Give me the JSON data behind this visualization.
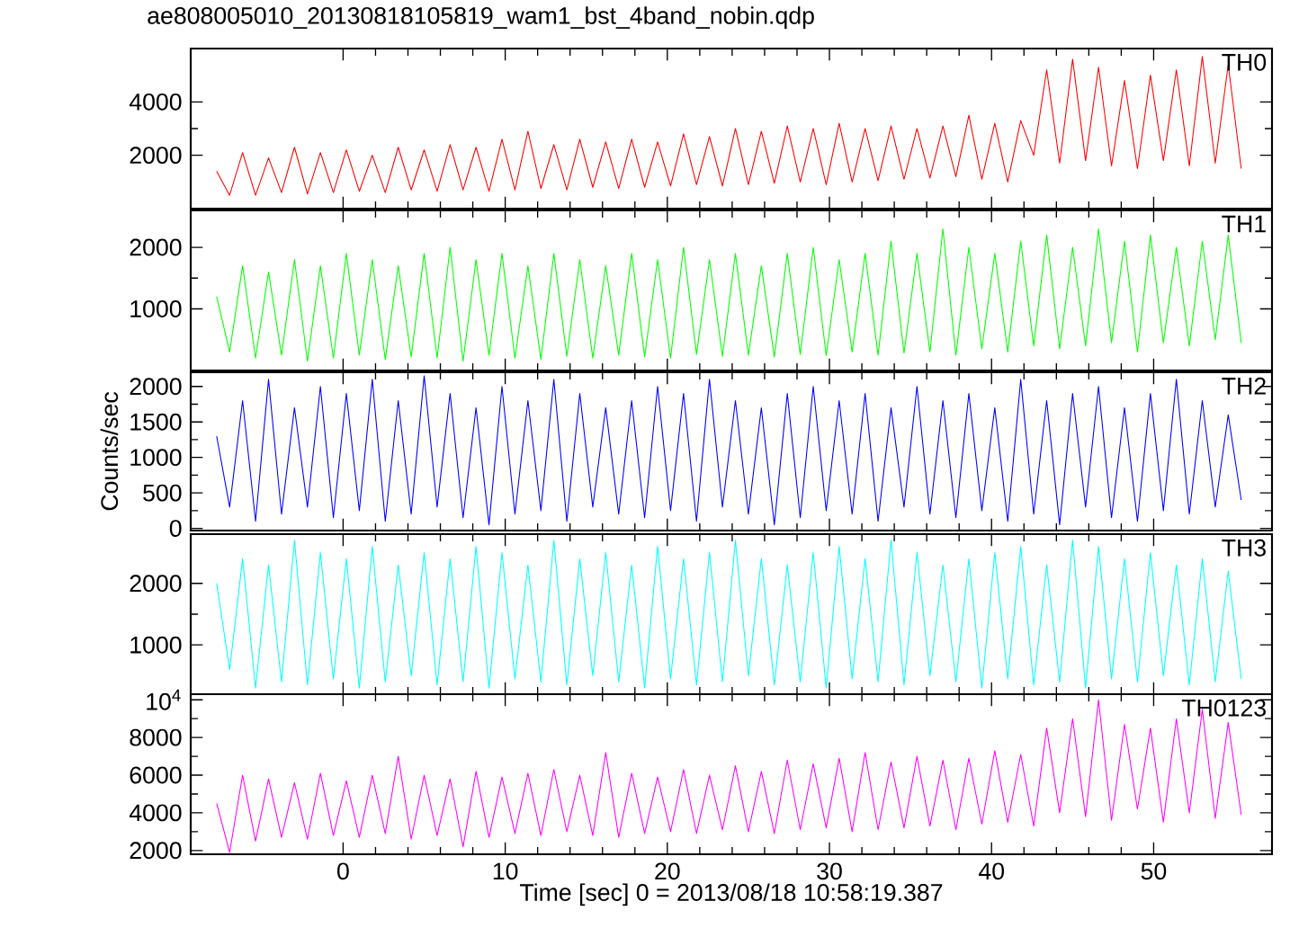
{
  "chart_data": [
    {
      "type": "line",
      "title": "ae808005010_20130818105819_wam1_bst_4band_nobin.qdp",
      "tick_labels": "y",
      "x": [
        -7.8,
        -7,
        -6.2,
        -5.4,
        -4.6,
        -3.8,
        -3,
        -2.2,
        -1.4,
        -0.6,
        0.2,
        1,
        1.8,
        2.6,
        3.4,
        4.2,
        5,
        5.8,
        6.6,
        7.4,
        8.2,
        9,
        9.8,
        10.6,
        11.4,
        12.2,
        13,
        13.8,
        14.6,
        15.4,
        16.2,
        17,
        17.8,
        18.6,
        19.4,
        20.2,
        21,
        21.8,
        22.6,
        23.4,
        24.2,
        25,
        25.8,
        26.6,
        27.4,
        28.2,
        29,
        29.8,
        30.6,
        31.4,
        32.2,
        33,
        33.8,
        34.6,
        35.4,
        36.2,
        37,
        37.8,
        38.6,
        39.4,
        40.2,
        41,
        41.8,
        42.6,
        43.4,
        44.2,
        45,
        45.8,
        46.6,
        47.4,
        48.2,
        49,
        49.8,
        50.6,
        51.4,
        52.2,
        53,
        53.8,
        54.6,
        55.4
      ],
      "xlim": [
        -9.4,
        57.3
      ],
      "xticks": [
        0,
        10,
        20,
        30,
        40,
        50
      ],
      "ylim": [
        0,
        6000
      ],
      "yticks": [
        2000,
        4000
      ],
      "series": [
        {
          "name": "TH0",
          "color": "#ff0000",
          "values": [
            1400,
            500,
            2100,
            500,
            1900,
            600,
            2300,
            550,
            2100,
            600,
            2200,
            650,
            2000,
            600,
            2300,
            700,
            2200,
            650,
            2400,
            700,
            2300,
            650,
            2600,
            700,
            2900,
            750,
            2400,
            700,
            2600,
            800,
            2500,
            750,
            2600,
            800,
            2500,
            850,
            2800,
            900,
            2700,
            850,
            3000,
            900,
            2900,
            950,
            3100,
            1000,
            3000,
            900,
            3200,
            1000,
            3000,
            1050,
            3100,
            1100,
            3000,
            1150,
            3100,
            1200,
            3500,
            1100,
            3200,
            1000,
            3300,
            2000,
            5200,
            1700,
            5600,
            1800,
            5300,
            1600,
            4800,
            1500,
            5000,
            1800,
            5200,
            1600,
            5700,
            1700,
            5400,
            1500
          ]
        }
      ]
    },
    {
      "type": "line",
      "tick_labels": "y",
      "x": [
        -7.8,
        -7,
        -6.2,
        -5.4,
        -4.6,
        -3.8,
        -3,
        -2.2,
        -1.4,
        -0.6,
        0.2,
        1,
        1.8,
        2.6,
        3.4,
        4.2,
        5,
        5.8,
        6.6,
        7.4,
        8.2,
        9,
        9.8,
        10.6,
        11.4,
        12.2,
        13,
        13.8,
        14.6,
        15.4,
        16.2,
        17,
        17.8,
        18.6,
        19.4,
        20.2,
        21,
        21.8,
        22.6,
        23.4,
        24.2,
        25,
        25.8,
        26.6,
        27.4,
        28.2,
        29,
        29.8,
        30.6,
        31.4,
        32.2,
        33,
        33.8,
        34.6,
        35.4,
        36.2,
        37,
        37.8,
        38.6,
        39.4,
        40.2,
        41,
        41.8,
        42.6,
        43.4,
        44.2,
        45,
        45.8,
        46.6,
        47.4,
        48.2,
        49,
        49.8,
        50.6,
        51.4,
        52.2,
        53,
        53.8,
        54.6,
        55.4
      ],
      "xlim": [
        -9.4,
        57.3
      ],
      "xticks": [
        0,
        10,
        20,
        30,
        40,
        50
      ],
      "ylim": [
        0,
        2600
      ],
      "yticks": [
        1000,
        2000
      ],
      "series": [
        {
          "name": "TH1",
          "color": "#00ff00",
          "values": [
            1200,
            300,
            1700,
            200,
            1600,
            250,
            1800,
            150,
            1700,
            200,
            1900,
            250,
            1800,
            180,
            1700,
            220,
            1900,
            200,
            2000,
            150,
            1800,
            250,
            1900,
            200,
            1700,
            180,
            1900,
            230,
            1800,
            200,
            1700,
            250,
            1900,
            220,
            1800,
            200,
            2000,
            260,
            1800,
            230,
            1900,
            250,
            1700,
            220,
            1900,
            260,
            2000,
            240,
            1800,
            300,
            1900,
            250,
            2100,
            280,
            1900,
            300,
            2300,
            250,
            2000,
            350,
            1900,
            300,
            2100,
            400,
            2200,
            350,
            2000,
            400,
            2300,
            450,
            2100,
            300,
            2200,
            450,
            2000,
            400,
            2100,
            500,
            2200,
            450
          ]
        }
      ]
    },
    {
      "type": "line",
      "tick_labels": "y",
      "ylabel": "Counts/sec",
      "x": [
        -7.8,
        -7,
        -6.2,
        -5.4,
        -4.6,
        -3.8,
        -3,
        -2.2,
        -1.4,
        -0.6,
        0.2,
        1,
        1.8,
        2.6,
        3.4,
        4.2,
        5,
        5.8,
        6.6,
        7.4,
        8.2,
        9,
        9.8,
        10.6,
        11.4,
        12.2,
        13,
        13.8,
        14.6,
        15.4,
        16.2,
        17,
        17.8,
        18.6,
        19.4,
        20.2,
        21,
        21.8,
        22.6,
        23.4,
        24.2,
        25,
        25.8,
        26.6,
        27.4,
        28.2,
        29,
        29.8,
        30.6,
        31.4,
        32.2,
        33,
        33.8,
        34.6,
        35.4,
        36.2,
        37,
        37.8,
        38.6,
        39.4,
        40.2,
        41,
        41.8,
        42.6,
        43.4,
        44.2,
        45,
        45.8,
        46.6,
        47.4,
        48.2,
        49,
        49.8,
        50.6,
        51.4,
        52.2,
        53,
        53.8,
        54.6,
        55.4
      ],
      "xlim": [
        -9.4,
        57.3
      ],
      "xticks": [
        0,
        10,
        20,
        30,
        40,
        50
      ],
      "ylim": [
        -30,
        2200
      ],
      "yticks": [
        0,
        500,
        1000,
        1500,
        2000
      ],
      "series": [
        {
          "name": "TH2",
          "color": "#0000ff",
          "values": [
            1300,
            300,
            1800,
            100,
            2100,
            200,
            1700,
            300,
            2000,
            150,
            1900,
            250,
            2100,
            100,
            1800,
            200,
            2150,
            300,
            1900,
            150,
            1700,
            50,
            2000,
            200,
            1800,
            250,
            2100,
            100,
            1900,
            300,
            1700,
            200,
            1800,
            150,
            2000,
            250,
            1900,
            100,
            2100,
            300,
            1800,
            200,
            1700,
            50,
            1900,
            150,
            2000,
            250,
            1800,
            200,
            1900,
            100,
            1700,
            300,
            2000,
            200,
            1800,
            150,
            1900,
            250,
            1700,
            100,
            2100,
            200,
            1800,
            50,
            1900,
            300,
            2000,
            150,
            1700,
            100,
            1900,
            250,
            2100,
            200,
            1800,
            300,
            1600,
            400
          ]
        }
      ]
    },
    {
      "type": "line",
      "tick_labels": "y",
      "x": [
        -7.8,
        -7,
        -6.2,
        -5.4,
        -4.6,
        -3.8,
        -3,
        -2.2,
        -1.4,
        -0.6,
        0.2,
        1,
        1.8,
        2.6,
        3.4,
        4.2,
        5,
        5.8,
        6.6,
        7.4,
        8.2,
        9,
        9.8,
        10.6,
        11.4,
        12.2,
        13,
        13.8,
        14.6,
        15.4,
        16.2,
        17,
        17.8,
        18.6,
        19.4,
        20.2,
        21,
        21.8,
        22.6,
        23.4,
        24.2,
        25,
        25.8,
        26.6,
        27.4,
        28.2,
        29,
        29.8,
        30.6,
        31.4,
        32.2,
        33,
        33.8,
        34.6,
        35.4,
        36.2,
        37,
        37.8,
        38.6,
        39.4,
        40.2,
        41,
        41.8,
        42.6,
        43.4,
        44.2,
        45,
        45.8,
        46.6,
        47.4,
        48.2,
        49,
        49.8,
        50.6,
        51.4,
        52.2,
        53,
        53.8,
        54.6,
        55.4
      ],
      "xlim": [
        -9.4,
        57.3
      ],
      "xticks": [
        0,
        10,
        20,
        30,
        40,
        50
      ],
      "ylim": [
        200,
        2800
      ],
      "yticks": [
        1000,
        2000
      ],
      "series": [
        {
          "name": "TH3",
          "color": "#00ffff",
          "values": [
            2000,
            600,
            2400,
            300,
            2300,
            400,
            2700,
            350,
            2500,
            450,
            2400,
            300,
            2600,
            400,
            2300,
            500,
            2500,
            350,
            2400,
            400,
            2600,
            300,
            2500,
            450,
            2300,
            400,
            2700,
            350,
            2400,
            500,
            2500,
            400,
            2300,
            300,
            2600,
            450,
            2400,
            350,
            2500,
            400,
            2700,
            500,
            2400,
            350,
            2300,
            400,
            2500,
            300,
            2600,
            450,
            2400,
            400,
            2700,
            350,
            2500,
            500,
            2300,
            400,
            2400,
            300,
            2500,
            450,
            2600,
            350,
            2300,
            400,
            2700,
            300,
            2600,
            450,
            2400,
            400,
            2500,
            500,
            2300,
            350,
            2400,
            400,
            2200,
            450
          ]
        }
      ]
    },
    {
      "type": "line",
      "xlabel": "Time [sec] 0 = 2013/08/18 10:58:19.387",
      "x": [
        -7.8,
        -7,
        -6.2,
        -5.4,
        -4.6,
        -3.8,
        -3,
        -2.2,
        -1.4,
        -0.6,
        0.2,
        1,
        1.8,
        2.6,
        3.4,
        4.2,
        5,
        5.8,
        6.6,
        7.4,
        8.2,
        9,
        9.8,
        10.6,
        11.4,
        12.2,
        13,
        13.8,
        14.6,
        15.4,
        16.2,
        17,
        17.8,
        18.6,
        19.4,
        20.2,
        21,
        21.8,
        22.6,
        23.4,
        24.2,
        25,
        25.8,
        26.6,
        27.4,
        28.2,
        29,
        29.8,
        30.6,
        31.4,
        32.2,
        33,
        33.8,
        34.6,
        35.4,
        36.2,
        37,
        37.8,
        38.6,
        39.4,
        40.2,
        41,
        41.8,
        42.6,
        43.4,
        44.2,
        45,
        45.8,
        46.6,
        47.4,
        48.2,
        49,
        49.8,
        50.6,
        51.4,
        52.2,
        53,
        53.8,
        54.6,
        55.4
      ],
      "xlim": [
        -9.4,
        57.3
      ],
      "xticks": [
        0,
        10,
        20,
        30,
        40,
        50
      ],
      "ylim": [
        1800,
        10300
      ],
      "yticks": [
        2000,
        4000,
        6000,
        8000,
        {
          "value": 10000,
          "label": "10$^{4}$"
        }
      ],
      "series": [
        {
          "name": "TH0123",
          "color": "#ff00ff",
          "values": [
            4500,
            1900,
            6000,
            2500,
            5800,
            2700,
            5600,
            2600,
            6100,
            2800,
            5700,
            2700,
            6000,
            2900,
            7000,
            2600,
            6000,
            2800,
            5800,
            2200,
            6200,
            2700,
            5900,
            2900,
            6100,
            2800,
            6300,
            3000,
            6000,
            2800,
            7200,
            2700,
            6100,
            2900,
            5900,
            3000,
            6300,
            2900,
            6000,
            3100,
            6500,
            3000,
            6200,
            2900,
            6800,
            3100,
            6600,
            3200,
            6900,
            3000,
            7200,
            3100,
            6700,
            3200,
            7000,
            3300,
            6800,
            3100,
            6900,
            3400,
            7300,
            3500,
            7100,
            3300,
            8500,
            4000,
            9000,
            3800,
            10000,
            3600,
            8700,
            4200,
            8500,
            3500,
            9000,
            4000,
            9500,
            3700,
            8800,
            3900
          ]
        }
      ]
    }
  ]
}
